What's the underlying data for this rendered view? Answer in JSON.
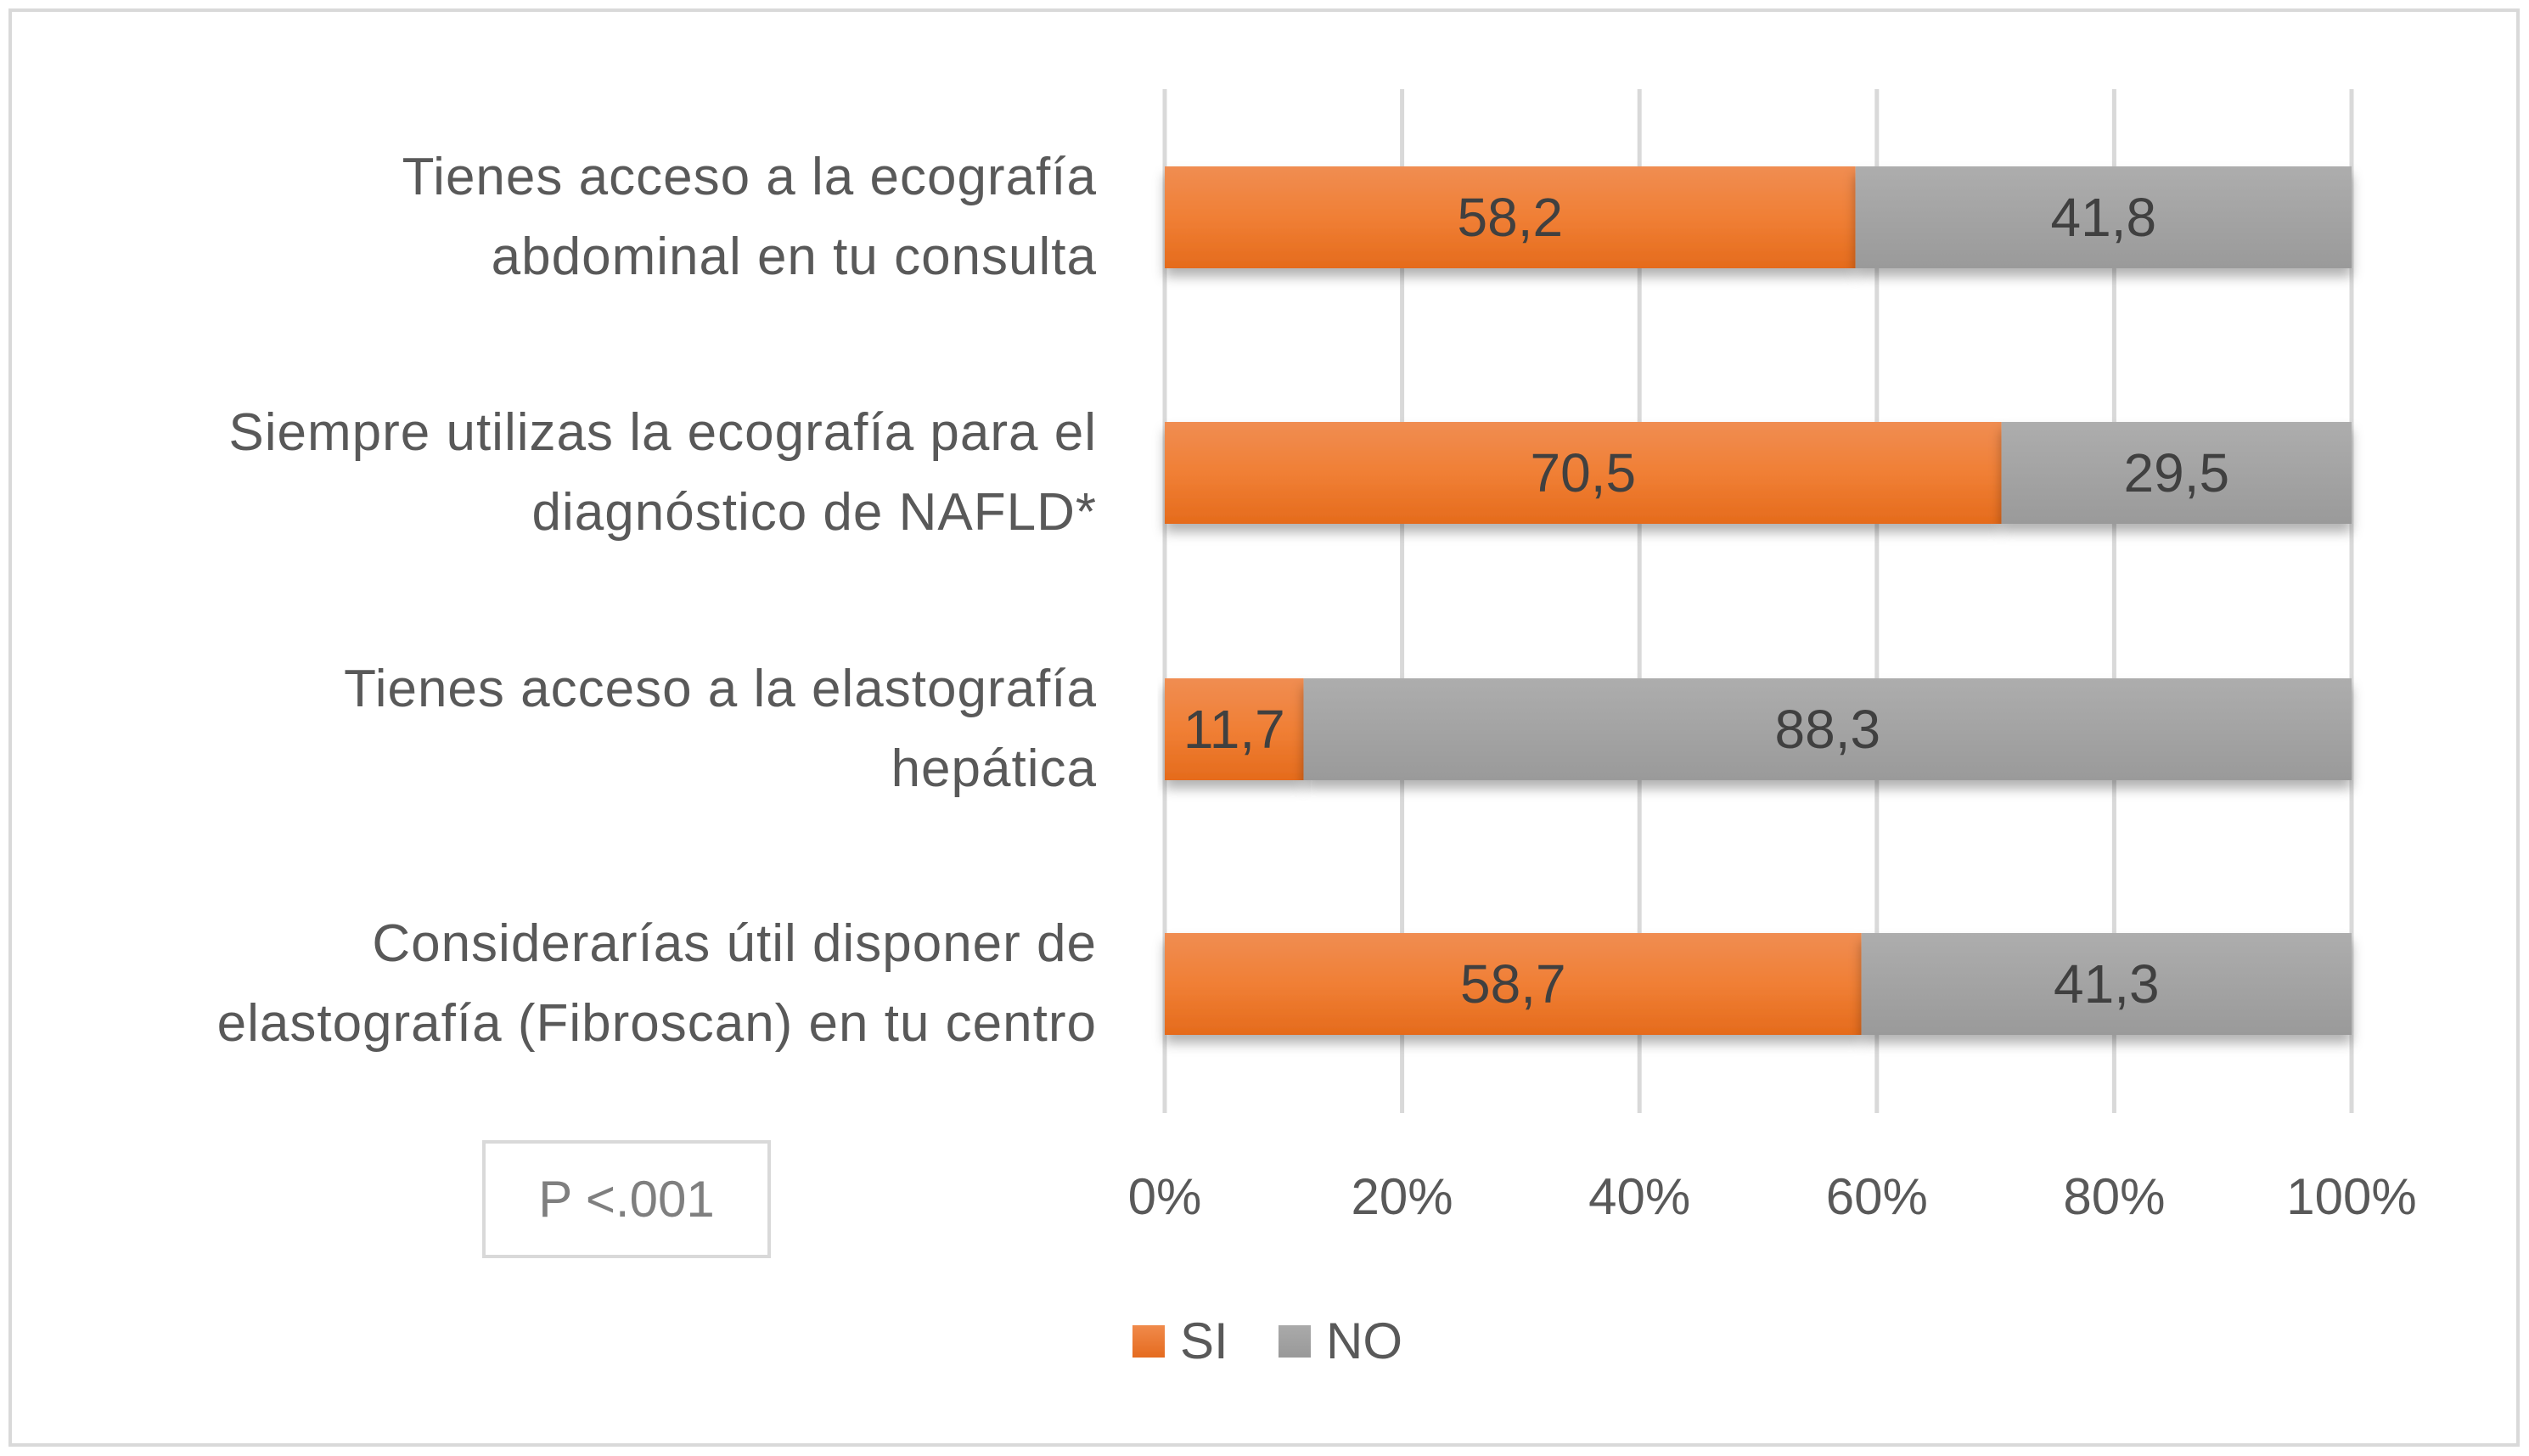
{
  "chart_data": {
    "type": "bar",
    "orientation": "horizontal",
    "stacked": "percent",
    "categories": [
      "Tienes acceso a la ecografía abdominal en tu consulta",
      "Siempre utilizas la ecografía para el diagnóstico de NAFLD*",
      "Tienes acceso a la elastografía hepática",
      "Considerarías útil disponer de elastografía (Fibroscan) en tu centro"
    ],
    "category_lines": [
      [
        "Tienes acceso a la ecografía",
        "abdominal en tu consulta"
      ],
      [
        "Siempre utilizas la ecografía para el",
        "diagnóstico de NAFLD*"
      ],
      [
        "Tienes acceso a la elastografía",
        "hepática"
      ],
      [
        "Considerarías útil disponer de",
        "elastografía (Fibroscan) en tu centro"
      ]
    ],
    "series": [
      {
        "name": "SI",
        "color": "#ED7D31",
        "values": [
          58.2,
          70.5,
          11.7,
          58.7
        ],
        "labels": [
          "58,2",
          "70,5",
          "11,7",
          "58,7"
        ]
      },
      {
        "name": "NO",
        "color": "#A5A5A5",
        "values": [
          41.8,
          29.5,
          88.3,
          41.3
        ],
        "labels": [
          "41,8",
          "29,5",
          "88,3",
          "41,3"
        ]
      }
    ],
    "xlim": [
      0,
      100
    ],
    "xticks": [
      "0%",
      "20%",
      "40%",
      "60%",
      "80%",
      "100%"
    ],
    "grid": true,
    "legend_position": "bottom",
    "annotation": "P <.001"
  }
}
